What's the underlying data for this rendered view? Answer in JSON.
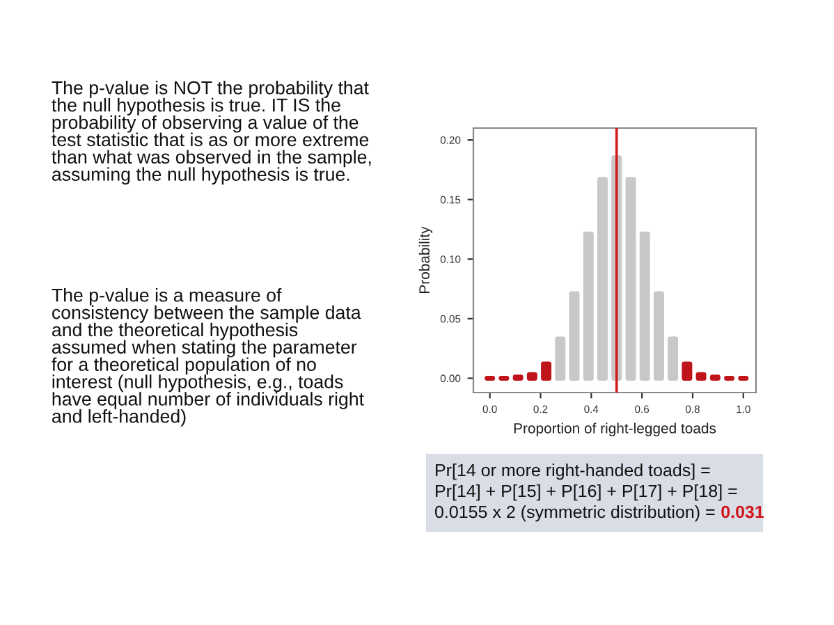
{
  "chart_data": {
    "type": "bar",
    "xlabel": "Proportion of right-legged toads",
    "ylabel": "Probability",
    "x": [
      0,
      0.0556,
      0.1111,
      0.1667,
      0.2222,
      0.2778,
      0.3333,
      0.3889,
      0.4444,
      0.5,
      0.5556,
      0.6111,
      0.6667,
      0.7222,
      0.7778,
      0.8333,
      0.8889,
      0.9444,
      1
    ],
    "values": [
      0,
      0,
      0.001,
      0.003,
      0.012,
      0.033,
      0.071,
      0.121,
      0.167,
      0.185,
      0.167,
      0.121,
      0.071,
      0.033,
      0.012,
      0.003,
      0.001,
      0,
      0
    ],
    "colors": [
      "#c0141b",
      "#c0141b",
      "#c0141b",
      "#c0141b",
      "#c0141b",
      "#c8c8c8",
      "#c8c8c8",
      "#c8c8c8",
      "#c8c8c8",
      "#c8c8c8",
      "#c8c8c8",
      "#c8c8c8",
      "#c8c8c8",
      "#c8c8c8",
      "#c0141b",
      "#c0141b",
      "#c0141b",
      "#c0141b",
      "#c0141b"
    ],
    "xlim": [
      -0.065,
      1.05
    ],
    "ylim": [
      -0.012,
      0.21
    ],
    "xticks": [
      {
        "value": 0,
        "label": "0.0"
      },
      0.2,
      0.4,
      0.6,
      0.8,
      {
        "value": 1,
        "label": "1.0"
      }
    ],
    "yticks": [
      {
        "value": 0,
        "label": "0.00"
      },
      0.05,
      {
        "value": 0.1,
        "label": "0.10"
      },
      0.15,
      {
        "value": 0.2,
        "label": "0.20"
      }
    ],
    "ref_lines": [
      {
        "axis": "x",
        "value": 0.5,
        "color": "#d01c1c"
      }
    ],
    "grid": false,
    "legend": false,
    "annotations": [
      "The p-value is NOT the probability that the null hypothesis is true. IT IS the probability of observing a value of the test statistic that is as or more extreme than what was observed in the sample, assuming the null hypothesis is true.",
      "The p-value is a measure of consistency between the sample data and the theoretical hypothesis assumed when stating the parameter for a theoretical population of no interest (null hypothesis, e.g., toads have equal number of individuals right and left-handed)",
      "Pr[14 or more right-handed toads] =",
      "Pr[14] + P[15] + P[16] + P[17] + P[18] =",
      "0.0155 x 2 (symmetric distribution) =",
      "0.031"
    ]
  }
}
